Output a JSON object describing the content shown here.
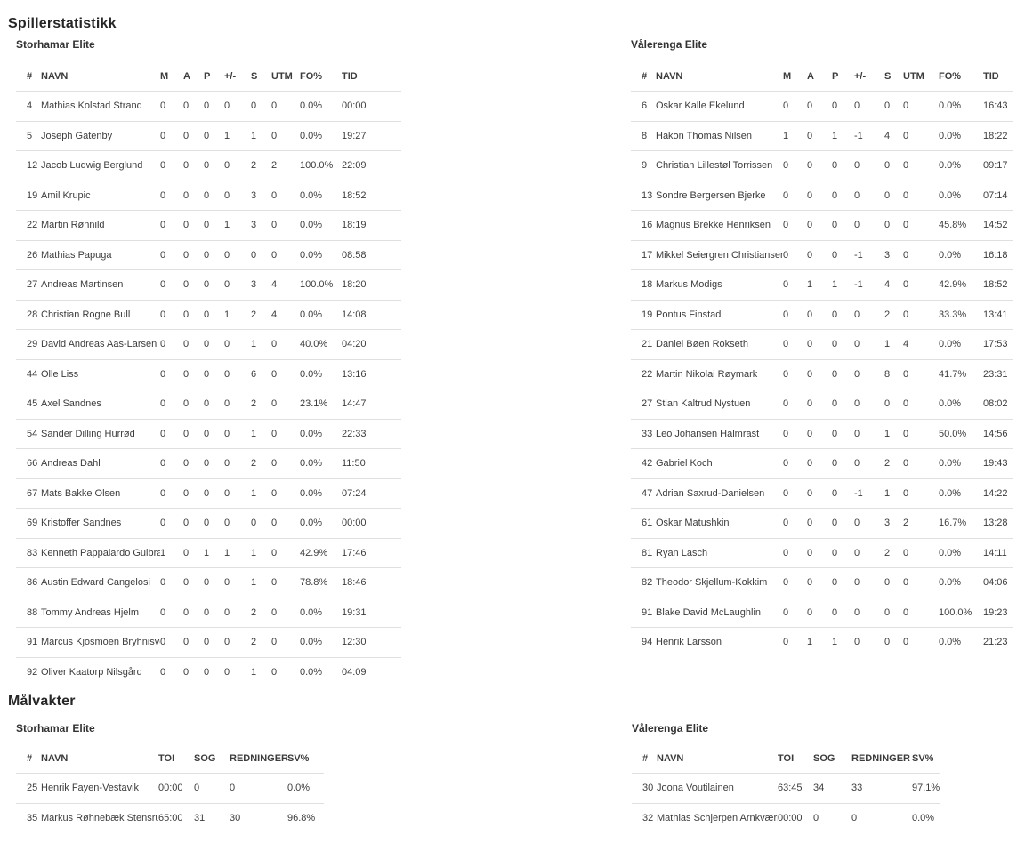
{
  "sections": {
    "players": {
      "title": "Spillerstatistikk"
    },
    "goalies": {
      "title": "Målvakter"
    }
  },
  "player_columns": [
    "#",
    "NAVN",
    "M",
    "A",
    "P",
    "+/-",
    "S",
    "UTM",
    "FO%",
    "TID"
  ],
  "goalie_columns": [
    "#",
    "NAVN",
    "TOI",
    "SOG",
    "REDNINGER",
    "SV%"
  ],
  "player_tables": [
    {
      "team": "Storhamar Elite",
      "rows": [
        [
          "4",
          "Mathias Kolstad Strand",
          "0",
          "0",
          "0",
          "0",
          "0",
          "0",
          "0.0%",
          "00:00"
        ],
        [
          "5",
          "Joseph Gatenby",
          "0",
          "0",
          "0",
          "1",
          "1",
          "0",
          "0.0%",
          "19:27"
        ],
        [
          "12",
          "Jacob Ludwig Berglund",
          "0",
          "0",
          "0",
          "0",
          "2",
          "2",
          "100.0%",
          "22:09"
        ],
        [
          "19",
          "Amil Krupic",
          "0",
          "0",
          "0",
          "0",
          "3",
          "0",
          "0.0%",
          "18:52"
        ],
        [
          "22",
          "Martin Rønnild",
          "0",
          "0",
          "0",
          "1",
          "3",
          "0",
          "0.0%",
          "18:19"
        ],
        [
          "26",
          "Mathias Papuga",
          "0",
          "0",
          "0",
          "0",
          "0",
          "0",
          "0.0%",
          "08:58"
        ],
        [
          "27",
          "Andreas Martinsen",
          "0",
          "0",
          "0",
          "0",
          "3",
          "4",
          "100.0%",
          "18:20"
        ],
        [
          "28",
          "Christian Rogne Bull",
          "0",
          "0",
          "0",
          "1",
          "2",
          "4",
          "0.0%",
          "14:08"
        ],
        [
          "29",
          "David Andreas Aas-Larsen",
          "0",
          "0",
          "0",
          "0",
          "1",
          "0",
          "40.0%",
          "04:20"
        ],
        [
          "44",
          "Olle Liss",
          "0",
          "0",
          "0",
          "0",
          "6",
          "0",
          "0.0%",
          "13:16"
        ],
        [
          "45",
          "Axel Sandnes",
          "0",
          "0",
          "0",
          "0",
          "2",
          "0",
          "23.1%",
          "14:47"
        ],
        [
          "54",
          "Sander Dilling Hurrød",
          "0",
          "0",
          "0",
          "0",
          "1",
          "0",
          "0.0%",
          "22:33"
        ],
        [
          "66",
          "Andreas Dahl",
          "0",
          "0",
          "0",
          "0",
          "2",
          "0",
          "0.0%",
          "11:50"
        ],
        [
          "67",
          "Mats Bakke Olsen",
          "0",
          "0",
          "0",
          "0",
          "1",
          "0",
          "0.0%",
          "07:24"
        ],
        [
          "69",
          "Kristoffer Sandnes",
          "0",
          "0",
          "0",
          "0",
          "0",
          "0",
          "0.0%",
          "00:00"
        ],
        [
          "83",
          "Kenneth Pappalardo Gulbrandsen",
          "1",
          "0",
          "1",
          "1",
          "1",
          "0",
          "42.9%",
          "17:46"
        ],
        [
          "86",
          "Austin Edward Cangelosi",
          "0",
          "0",
          "0",
          "0",
          "1",
          "0",
          "78.8%",
          "18:46"
        ],
        [
          "88",
          "Tommy Andreas Hjelm",
          "0",
          "0",
          "0",
          "0",
          "2",
          "0",
          "0.0%",
          "19:31"
        ],
        [
          "91",
          "Marcus Kjosmoen Bryhnisveen",
          "0",
          "0",
          "0",
          "0",
          "2",
          "0",
          "0.0%",
          "12:30"
        ],
        [
          "92",
          "Oliver Kaatorp Nilsgård",
          "0",
          "0",
          "0",
          "0",
          "1",
          "0",
          "0.0%",
          "04:09"
        ]
      ]
    },
    {
      "team": "Vålerenga Elite",
      "rows": [
        [
          "6",
          "Oskar Kalle Ekelund",
          "0",
          "0",
          "0",
          "0",
          "0",
          "0",
          "0.0%",
          "16:43"
        ],
        [
          "8",
          "Hakon Thomas Nilsen",
          "1",
          "0",
          "1",
          "-1",
          "4",
          "0",
          "0.0%",
          "18:22"
        ],
        [
          "9",
          "Christian Lillestøl Torrissen",
          "0",
          "0",
          "0",
          "0",
          "0",
          "0",
          "0.0%",
          "09:17"
        ],
        [
          "13",
          "Sondre Bergersen Bjerke",
          "0",
          "0",
          "0",
          "0",
          "0",
          "0",
          "0.0%",
          "07:14"
        ],
        [
          "16",
          "Magnus Brekke Henriksen",
          "0",
          "0",
          "0",
          "0",
          "0",
          "0",
          "45.8%",
          "14:52"
        ],
        [
          "17",
          "Mikkel Seiergren Christiansen",
          "0",
          "0",
          "0",
          "-1",
          "3",
          "0",
          "0.0%",
          "16:18"
        ],
        [
          "18",
          "Markus Modigs",
          "0",
          "1",
          "1",
          "-1",
          "4",
          "0",
          "42.9%",
          "18:52"
        ],
        [
          "19",
          "Pontus Finstad",
          "0",
          "0",
          "0",
          "0",
          "2",
          "0",
          "33.3%",
          "13:41"
        ],
        [
          "21",
          "Daniel Bøen Rokseth",
          "0",
          "0",
          "0",
          "0",
          "1",
          "4",
          "0.0%",
          "17:53"
        ],
        [
          "22",
          "Martin Nikolai Røymark",
          "0",
          "0",
          "0",
          "0",
          "8",
          "0",
          "41.7%",
          "23:31"
        ],
        [
          "27",
          "Stian Kaltrud Nystuen",
          "0",
          "0",
          "0",
          "0",
          "0",
          "0",
          "0.0%",
          "08:02"
        ],
        [
          "33",
          "Leo Johansen Halmrast",
          "0",
          "0",
          "0",
          "0",
          "1",
          "0",
          "50.0%",
          "14:56"
        ],
        [
          "42",
          "Gabriel Koch",
          "0",
          "0",
          "0",
          "0",
          "2",
          "0",
          "0.0%",
          "19:43"
        ],
        [
          "47",
          "Adrian Saxrud-Danielsen",
          "0",
          "0",
          "0",
          "-1",
          "1",
          "0",
          "0.0%",
          "14:22"
        ],
        [
          "61",
          "Oskar Matushkin",
          "0",
          "0",
          "0",
          "0",
          "3",
          "2",
          "16.7%",
          "13:28"
        ],
        [
          "81",
          "Ryan Lasch",
          "0",
          "0",
          "0",
          "0",
          "2",
          "0",
          "0.0%",
          "14:11"
        ],
        [
          "82",
          "Theodor Skjellum-Kokkim",
          "0",
          "0",
          "0",
          "0",
          "0",
          "0",
          "0.0%",
          "04:06"
        ],
        [
          "91",
          "Blake David McLaughlin",
          "0",
          "0",
          "0",
          "0",
          "0",
          "0",
          "100.0%",
          "19:23"
        ],
        [
          "94",
          "Henrik Larsson",
          "0",
          "1",
          "1",
          "0",
          "0",
          "0",
          "0.0%",
          "21:23"
        ]
      ]
    }
  ],
  "goalie_tables": [
    {
      "team": "Storhamar Elite",
      "rows": [
        [
          "25",
          "Henrik Fayen-Vestavik",
          "00:00",
          "0",
          "0",
          "0.0%"
        ],
        [
          "35",
          "Markus Røhnebæk Stensrud",
          "65:00",
          "31",
          "30",
          "96.8%"
        ]
      ]
    },
    {
      "team": "Vålerenga Elite",
      "rows": [
        [
          "30",
          "Joona Voutilainen",
          "63:45",
          "34",
          "33",
          "97.1%"
        ],
        [
          "32",
          "Mathias Schjerpen Arnkværn",
          "00:00",
          "0",
          "0",
          "0.0%"
        ]
      ]
    }
  ],
  "colors": {
    "text": "#3c3c3c",
    "divider": "#e0e0e0",
    "heading": "#262626"
  }
}
